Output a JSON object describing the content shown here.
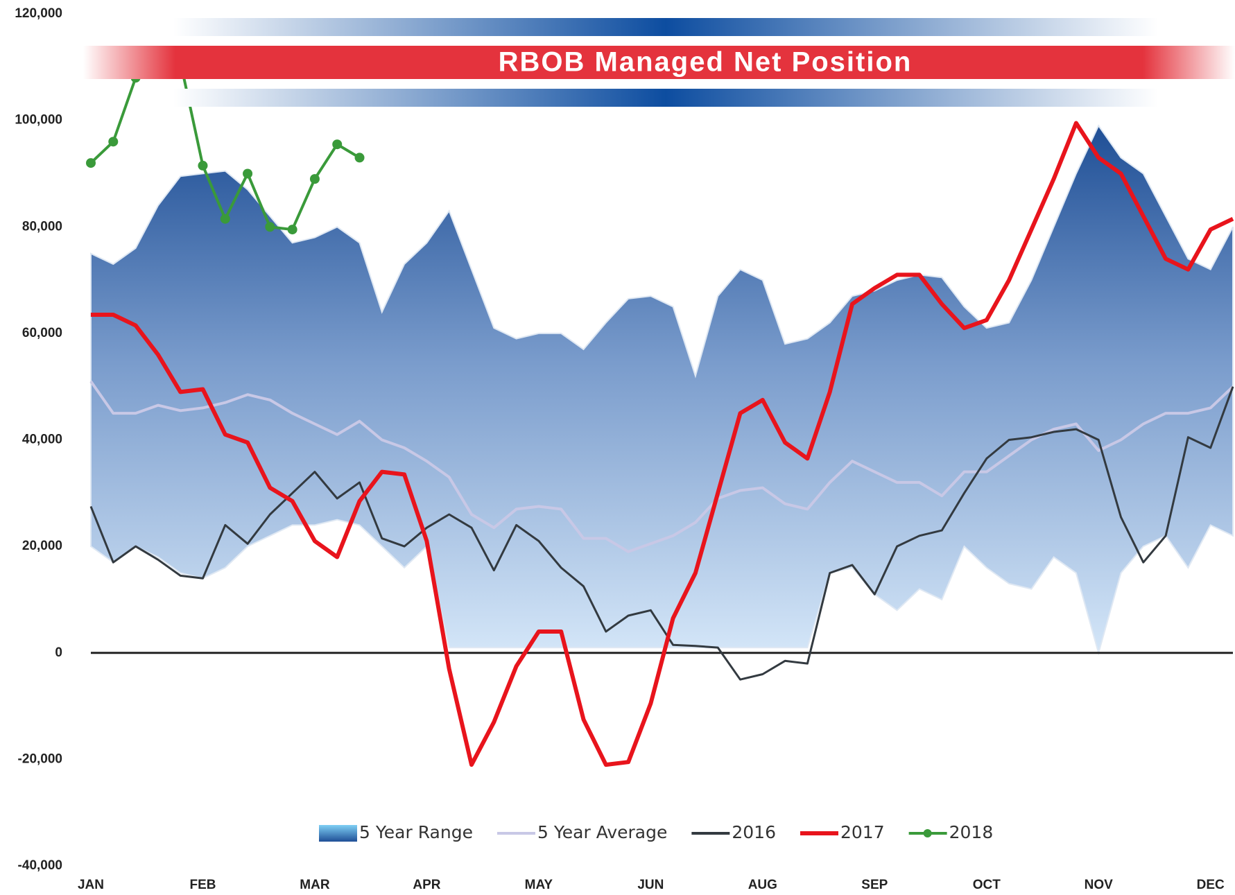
{
  "chart_data": {
    "type": "line",
    "title": "RBOB Managed Net Position",
    "categories": [
      "JAN",
      null,
      null,
      null,
      null,
      "FEB",
      null,
      null,
      null,
      null,
      "MAR",
      null,
      null,
      null,
      null,
      "APR",
      null,
      null,
      null,
      null,
      "MAY",
      null,
      null,
      null,
      null,
      "JUN",
      null,
      null,
      null,
      null,
      "AUG",
      null,
      null,
      null,
      null,
      "SEP",
      null,
      null,
      null,
      null,
      "OCT",
      null,
      null,
      null,
      null,
      "NOV",
      null,
      null,
      null,
      null,
      "DEC",
      null
    ],
    "ylim": [
      -40000,
      120000
    ],
    "yticks": [
      {
        "value": -40000,
        "label": "-40,000"
      },
      {
        "value": -20000,
        "label": "-20,000"
      },
      0,
      {
        "value": 20000,
        "label": "20,000"
      },
      {
        "value": 40000,
        "label": "40,000"
      },
      {
        "value": 60000,
        "label": "60,000"
      },
      {
        "value": 80000,
        "label": "80,000"
      },
      {
        "value": 100000,
        "label": "100,000"
      },
      {
        "value": 120000,
        "label": "120,000"
      }
    ],
    "series": [
      {
        "name": "5 Year Range",
        "type": "range",
        "color": "#2a5aa0",
        "values": [
          75000,
          73000,
          76000,
          84000,
          89500,
          90000,
          90500,
          87000,
          82000,
          77000,
          78000,
          80000,
          77000,
          64000,
          73000,
          77000,
          83000,
          72000,
          61000,
          59000,
          60000,
          60000,
          57000,
          62000,
          66500,
          67000,
          65000,
          52000,
          67000,
          72000,
          70000,
          58000,
          59000,
          62000,
          67000,
          68000,
          70000,
          71000,
          70500,
          65000,
          61000,
          62000,
          70000,
          80000,
          90000,
          99000,
          93000,
          90000,
          82000,
          74000,
          72000,
          80000
        ],
        "low": [
          20000,
          17000,
          20000,
          18000,
          15000,
          14000,
          16000,
          20000,
          22000,
          24000,
          24000,
          25000,
          24000,
          20000,
          16000,
          20000,
          1000,
          1000,
          1000,
          1000,
          1000,
          1000,
          1000,
          1000,
          1000,
          1000,
          1000,
          1000,
          1000,
          1000,
          1000,
          1000,
          1000,
          15000,
          16000,
          11000,
          8000,
          12000,
          10000,
          20000,
          16000,
          13000,
          12000,
          18000,
          15000,
          0,
          15000,
          20000,
          22000,
          16000,
          24000,
          22000
        ]
      },
      {
        "name": "5 Year Average",
        "type": "line",
        "color": "#c8c8e6",
        "values": [
          51000,
          45000,
          45000,
          46500,
          45500,
          46000,
          47000,
          48500,
          47500,
          45000,
          43000,
          41000,
          43500,
          40000,
          38500,
          36000,
          33000,
          26000,
          23500,
          27000,
          27500,
          27000,
          21500,
          21500,
          19000,
          20500,
          22000,
          24500,
          29000,
          30500,
          31000,
          28000,
          27000,
          32000,
          36000,
          34000,
          32000,
          32000,
          29500,
          34000,
          34000,
          37000,
          40000,
          42000,
          43000,
          38000,
          40000,
          43000,
          45000,
          45000,
          46000,
          50000
        ]
      },
      {
        "name": "2016",
        "type": "line",
        "color": "#333a40",
        "values": [
          27500,
          17000,
          20000,
          17500,
          14500,
          14000,
          24000,
          20500,
          26000,
          30000,
          34000,
          29000,
          32000,
          21500,
          20000,
          23500,
          26000,
          23500,
          15500,
          24000,
          21000,
          16000,
          12500,
          4000,
          7000,
          8000,
          1500,
          1300,
          1000,
          -5000,
          -4000,
          -1500,
          -2000,
          15000,
          16500,
          11000,
          20000,
          22000,
          23000,
          30000,
          36500,
          40000,
          40500,
          41500,
          42000,
          40000,
          25500,
          17000,
          22000,
          40500,
          38500,
          50000
        ]
      },
      {
        "name": "2017",
        "type": "line",
        "color": "#e8141c",
        "values": [
          63500,
          63500,
          61500,
          56000,
          49000,
          49500,
          41000,
          39500,
          31000,
          28500,
          21000,
          18000,
          28500,
          34000,
          33500,
          21000,
          -3000,
          -21000,
          -13000,
          -2500,
          4000,
          4000,
          -12500,
          -21000,
          -20500,
          -9500,
          6500,
          15000,
          30000,
          45000,
          47500,
          39500,
          36500,
          49000,
          65500,
          68500,
          71000,
          71000,
          65500,
          61000,
          62500,
          70000,
          79500,
          89000,
          99500,
          93000,
          90000,
          82000,
          74000,
          72000,
          79500,
          81500
        ]
      },
      {
        "name": "2018",
        "type": "line",
        "color": "#3a9a3a",
        "markers": true,
        "values": [
          92000,
          96000,
          108000,
          111000,
          111000,
          91500,
          81500,
          90000,
          80000,
          79500,
          89000,
          95500,
          93000,
          null,
          null,
          null,
          null,
          null,
          null,
          null,
          null,
          null,
          null,
          null,
          null,
          null,
          null,
          null,
          null,
          null,
          null,
          null,
          null,
          null,
          null,
          null,
          null,
          null,
          null,
          null,
          null,
          null,
          null,
          null,
          null,
          null,
          null,
          null,
          null,
          null,
          null,
          null
        ]
      }
    ]
  }
}
